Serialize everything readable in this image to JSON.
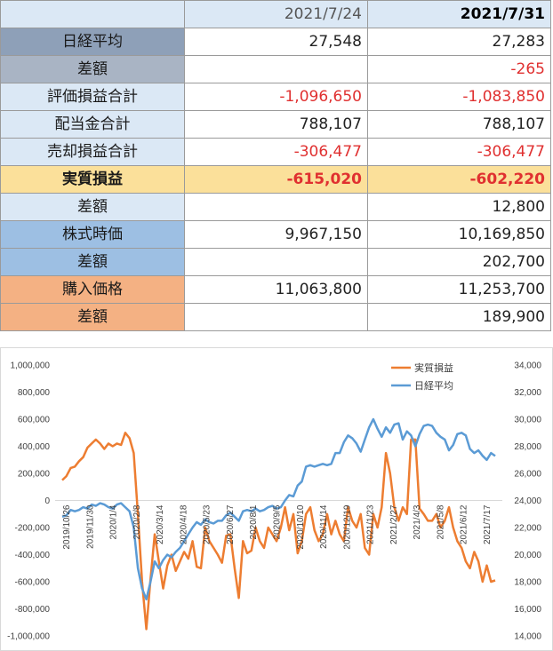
{
  "table": {
    "header": [
      "",
      "2021/7/24",
      "2021/7/31"
    ],
    "rows": [
      {
        "label": "日経平均",
        "v1": "27,548",
        "v2": "27,283",
        "bg": "#8ea0b8",
        "neg1": false,
        "neg2": false,
        "bold": false
      },
      {
        "label": "差額",
        "v1": "",
        "v2": "-265",
        "bg": "#a9b4c4",
        "neg1": false,
        "neg2": true,
        "bold": false
      },
      {
        "label": "評価損益合計",
        "v1": "-1,096,650",
        "v2": "-1,083,850",
        "bg": "#dbe8f5",
        "neg1": true,
        "neg2": true,
        "bold": false
      },
      {
        "label": "配当金合計",
        "v1": "788,107",
        "v2": "788,107",
        "bg": "#dbe8f5",
        "neg1": false,
        "neg2": false,
        "bold": false
      },
      {
        "label": "売却損益合計",
        "v1": "-306,477",
        "v2": "-306,477",
        "bg": "#dbe8f5",
        "neg1": true,
        "neg2": true,
        "bold": false
      },
      {
        "label": "実質損益",
        "v1": "-615,020",
        "v2": "-602,220",
        "bg": "#fbe09a",
        "neg1": true,
        "neg2": true,
        "bold": true
      },
      {
        "label": "差額",
        "v1": "",
        "v2": "12,800",
        "bg": "#dbe8f5",
        "neg1": false,
        "neg2": false,
        "bold": false
      },
      {
        "label": "株式時価",
        "v1": "9,967,150",
        "v2": "10,169,850",
        "bg": "#9dbfe3",
        "neg1": false,
        "neg2": false,
        "bold": false
      },
      {
        "label": "差額",
        "v1": "",
        "v2": "202,700",
        "bg": "#9dbfe3",
        "neg1": false,
        "neg2": false,
        "bold": false
      },
      {
        "label": "購入価格",
        "v1": "11,063,800",
        "v2": "11,253,700",
        "bg": "#f4b183",
        "neg1": false,
        "neg2": false,
        "bold": false
      },
      {
        "label": "差額",
        "v1": "",
        "v2": "189,900",
        "bg": "#f4b183",
        "neg1": false,
        "neg2": false,
        "bold": false
      }
    ]
  },
  "chart_data": {
    "type": "line",
    "x_tick_labels": [
      "2019/10/26",
      "2019/11/30",
      "2020/1/4",
      "2020/2/8",
      "2020/3/14",
      "2020/4/18",
      "2020/5/23",
      "2020/6/27",
      "2020/8/1",
      "2020/9/5",
      "2020/10/10",
      "2020/11/14",
      "2020/12/19",
      "2021/1/23",
      "2021/2/27",
      "2021/4/3",
      "2021/5/8",
      "2021/6/12",
      "2021/7/17"
    ],
    "y_left": {
      "min": -1000000,
      "max": 1000000,
      "step": 200000,
      "tick_labels": [
        "1,000,000",
        "800,000",
        "600,000",
        "400,000",
        "200,000",
        "0",
        "-200,000",
        "-400,000",
        "-600,000",
        "-800,000",
        "-1,000,000"
      ]
    },
    "y_right": {
      "min": 14000,
      "max": 34000,
      "step": 2000,
      "tick_labels": [
        "34,000",
        "32,000",
        "30,000",
        "28,000",
        "26,000",
        "24,000",
        "22,000",
        "20,000",
        "18,000",
        "16,000",
        "14,000"
      ]
    },
    "legend_position": "top-right",
    "series": [
      {
        "name": "実質損益",
        "axis": "left",
        "color": "#ed7d31",
        "values": [
          150000,
          180000,
          240000,
          250000,
          290000,
          320000,
          390000,
          420000,
          450000,
          420000,
          380000,
          420000,
          400000,
          420000,
          410000,
          500000,
          460000,
          350000,
          -100000,
          -600000,
          -950000,
          -580000,
          -250000,
          -450000,
          -650000,
          -480000,
          -400000,
          -520000,
          -450000,
          -380000,
          -430000,
          -300000,
          -490000,
          -500000,
          -200000,
          -300000,
          -350000,
          -400000,
          -460000,
          -260000,
          -250000,
          -500000,
          -720000,
          -300000,
          -390000,
          -370000,
          -200000,
          -300000,
          -350000,
          -200000,
          -250000,
          -300000,
          -200000,
          -50000,
          -220000,
          -100000,
          -390000,
          -300000,
          -100000,
          -50000,
          -220000,
          -300000,
          -250000,
          -100000,
          -250000,
          -150000,
          -250000,
          -300000,
          -50000,
          -150000,
          -200000,
          -100000,
          -350000,
          -400000,
          -100000,
          -200000,
          -50000,
          350000,
          200000,
          -50000,
          -150000,
          -50000,
          -100000,
          450000,
          450000,
          -60000,
          -100000,
          -150000,
          -150000,
          -100000,
          -200000,
          -150000,
          -50000,
          -200000,
          -300000,
          -350000,
          -450000,
          -500000,
          -380000,
          -450000,
          -600000,
          -480000,
          -600000,
          -590000
        ]
      },
      {
        "name": "日経平均",
        "axis": "right",
        "color": "#5b9bd5",
        "values": [
          22800,
          22900,
          23300,
          23200,
          23300,
          23500,
          23400,
          23700,
          23600,
          23800,
          23700,
          23500,
          23400,
          23700,
          23800,
          23500,
          23200,
          22000,
          19000,
          17500,
          16700,
          18000,
          19500,
          19000,
          19600,
          20000,
          19800,
          20200,
          20500,
          21000,
          21500,
          22000,
          22400,
          22200,
          22600,
          22400,
          22300,
          22500,
          22500,
          22900,
          23100,
          22800,
          22500,
          23200,
          23300,
          23200,
          23400,
          23200,
          23300,
          23500,
          23600,
          23400,
          23500,
          24000,
          24400,
          24300,
          25100,
          25400,
          26500,
          26600,
          26500,
          26600,
          26700,
          26600,
          26700,
          27500,
          27500,
          28300,
          28800,
          28600,
          28200,
          27600,
          28500,
          29400,
          30000,
          29300,
          28700,
          29400,
          29000,
          29600,
          29700,
          28500,
          29100,
          28800,
          28000,
          28900,
          29500,
          29600,
          29500,
          29000,
          28700,
          28500,
          27700,
          28100,
          28900,
          29000,
          28800,
          27800,
          27500,
          27700,
          27300,
          27000,
          27500,
          27283
        ]
      }
    ]
  }
}
